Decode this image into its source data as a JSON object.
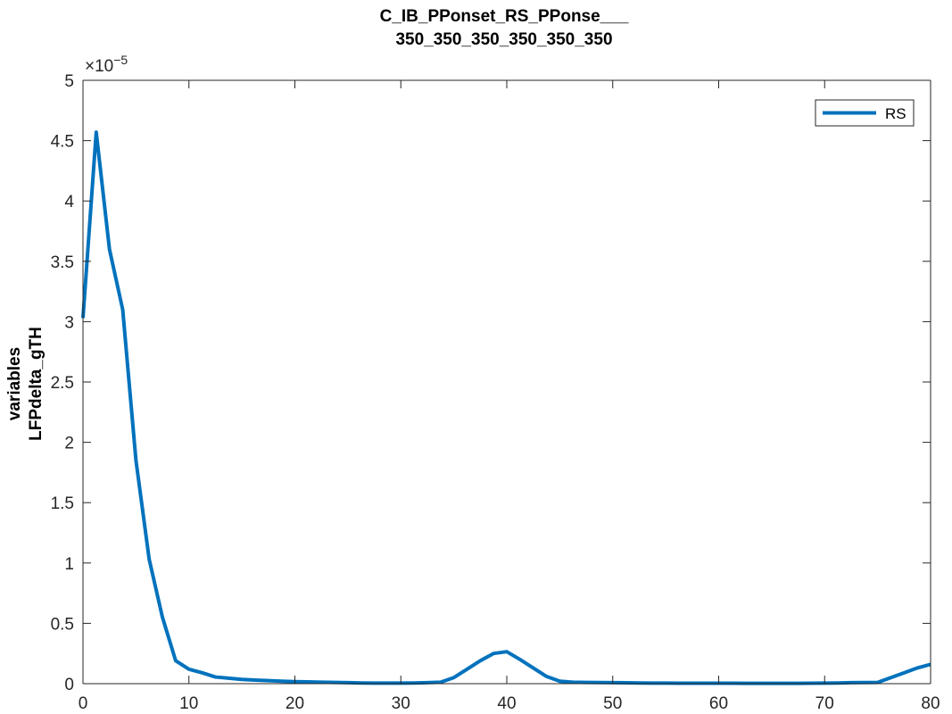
{
  "chart_data": {
    "type": "line",
    "title": [
      "C_IB_PPonset_RS_PPonse___",
      "350_350_350_350_350_350"
    ],
    "ylabel": [
      "variables",
      "LFPdelta_gTH"
    ],
    "xlabel": "",
    "xlim": [
      0,
      80
    ],
    "ylim": [
      0,
      5
    ],
    "y_exponent_label": "×10",
    "y_exponent_power": "−5",
    "x_ticks": [
      0,
      10,
      20,
      30,
      40,
      50,
      60,
      70,
      80
    ],
    "x_tick_labels": [
      "0",
      "10",
      "20",
      "30",
      "40",
      "50",
      "60",
      "70",
      "80"
    ],
    "y_ticks": [
      0,
      0.5,
      1,
      1.5,
      2,
      2.5,
      3,
      3.5,
      4,
      4.5,
      5
    ],
    "y_tick_labels": [
      "0",
      "0.5",
      "1",
      "1.5",
      "2",
      "2.5",
      "3",
      "3.5",
      "4",
      "4.5",
      "5"
    ],
    "grid": false,
    "legend_position": "top-right",
    "series": [
      {
        "name": "RS",
        "color": "#0072BD",
        "x": [
          0,
          1.25,
          2.5,
          3.75,
          5,
          6.25,
          7.5,
          8.75,
          10,
          11.25,
          12.5,
          13.75,
          15,
          16.25,
          17.5,
          18.75,
          20,
          21.25,
          22.5,
          23.75,
          25,
          26.25,
          27.5,
          28.75,
          30,
          31.25,
          32.5,
          33.75,
          35,
          36.25,
          37.5,
          38.75,
          40,
          41.25,
          42.5,
          43.75,
          45,
          46.25,
          47.5,
          48.75,
          50,
          51.25,
          52.5,
          53.75,
          55,
          56.25,
          57.5,
          58.75,
          60,
          61.25,
          62.5,
          63.75,
          65,
          66.25,
          67.5,
          68.75,
          70,
          71.25,
          72.5,
          73.75,
          75,
          76.25,
          77.5,
          78.75,
          80
        ],
        "values": [
          3.03,
          4.57,
          3.6,
          3.1,
          1.85,
          1.03,
          0.55,
          0.19,
          0.12,
          0.09,
          0.055,
          0.045,
          0.035,
          0.03,
          0.025,
          0.02,
          0.017,
          0.015,
          0.012,
          0.01,
          0.008,
          0.006,
          0.005,
          0.005,
          0.005,
          0.006,
          0.008,
          0.012,
          0.05,
          0.12,
          0.19,
          0.25,
          0.265,
          0.2,
          0.13,
          0.06,
          0.02,
          0.012,
          0.01,
          0.009,
          0.008,
          0.007,
          0.006,
          0.005,
          0.005,
          0.004,
          0.004,
          0.004,
          0.004,
          0.004,
          0.003,
          0.003,
          0.003,
          0.003,
          0.003,
          0.004,
          0.005,
          0.006,
          0.008,
          0.009,
          0.01,
          0.05,
          0.09,
          0.13,
          0.16
        ]
      }
    ]
  }
}
